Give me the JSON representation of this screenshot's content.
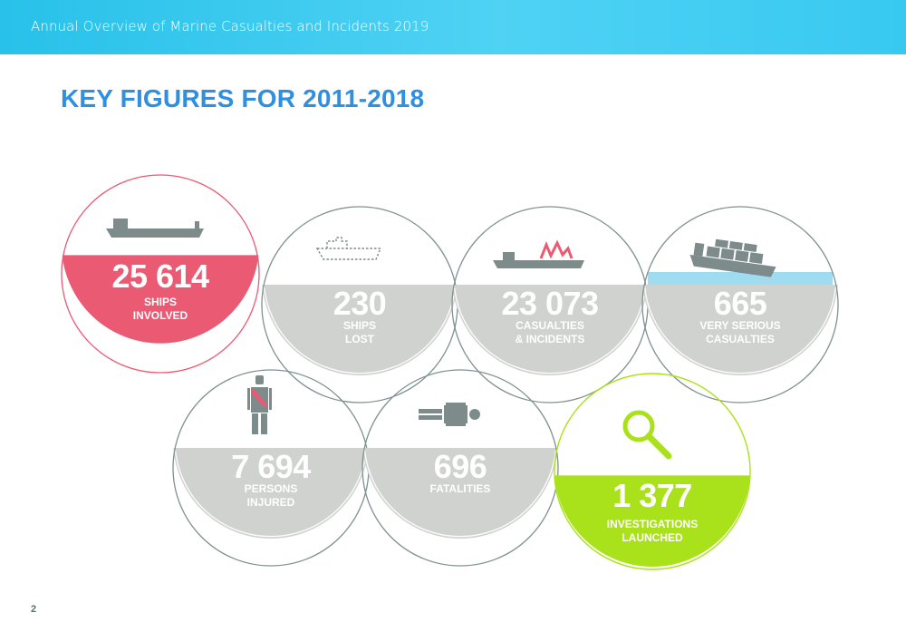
{
  "header": {
    "text": "Annual Overview of Marine Casualties and Incidents 2019"
  },
  "title": "KEY FIGURES FOR 2011-2018",
  "page_number": "2",
  "colors": {
    "header": "#38c9f1",
    "title": "#2f8fe0",
    "pink": "#ea5a72",
    "grey": "#d0d2cf",
    "green": "#a9e21a",
    "icon_grey": "#7d8b8b",
    "outline": "#7f9190"
  },
  "figures": [
    {
      "value": "25 614",
      "label_line1": "SHIPS",
      "label_line2": "INVOLVED",
      "icon": "cargo-ship-icon",
      "highlight": "pink"
    },
    {
      "value": "230",
      "label_line1": "SHIPS",
      "label_line2": "LOST",
      "icon": "ship-outline-icon",
      "highlight": "grey"
    },
    {
      "value": "23 073",
      "label_line1": "CASUALTIES",
      "label_line2": "& INCIDENTS",
      "icon": "ship-damage-icon",
      "highlight": "grey"
    },
    {
      "value": "665",
      "label_line1": "VERY SERIOUS",
      "label_line2": "CASUALTIES",
      "icon": "sinking-ship-icon",
      "highlight": "grey"
    },
    {
      "value": "7 694",
      "label_line1": "PERSONS",
      "label_line2": "INJURED",
      "icon": "injured-person-icon",
      "highlight": "grey"
    },
    {
      "value": "696",
      "label_line1": "FATALITIES",
      "label_line2": "",
      "icon": "lying-person-icon",
      "highlight": "grey"
    },
    {
      "value": "1 377",
      "label_line1": "INVESTIGATIONS",
      "label_line2": "LAUNCHED",
      "icon": "magnifier-icon",
      "highlight": "green"
    }
  ]
}
